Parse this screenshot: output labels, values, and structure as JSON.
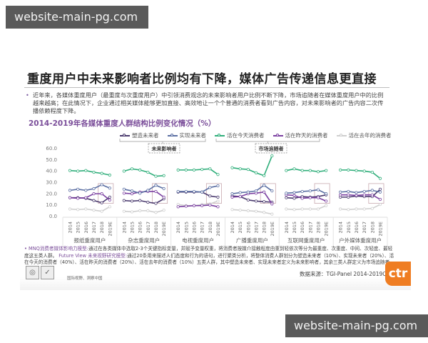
{
  "watermarks": {
    "top": "website-main-pg.com",
    "bottom": "website-main-pg.com"
  },
  "slide": {
    "title": "重度用户中未来影响者比例均有下降，媒体广告传递信息更直接",
    "bullet": "近年来，各媒体重度用户（最重度与次重度用户）中引领消费观念的未来影响者用户比例不断下降，市场追随者在媒体重度用户中的比例越来越高；在此情况下，企业通过相关媒体能够更加直接、高效地让一个个普通的消费者看到广告内容，对未来影响者的广告内容二次传播依赖程度下降。",
    "note_highlight_1": "MNQ消费者媒体影响力模型:",
    "note_text_1": "通过在各类媒体中选取2-3个关键指标变量，并赋予变量权重，将消费者按媒介接触程度由重到轻依次等分为最重度、次重度、中间、次轻度、最轻度这五类人群。",
    "note_highlight_2": "Future View 未来视野研究模型:",
    "note_text_2": "通过20条用来描述人们态度和行为的语句，进行聚类分析，将整体消费人群划分为塑造未来者（10%）、实现未来者（20%）、活在今天的消费者（40%）、活在昨天的消费者（20%）、活在去年的消费者（10%）五类人群，其中塑造未来者、实现未来者定义为未来影响者，其余三类人群定义为市场追随者。",
    "source": "数据来源：TGI-Panel 2014-2019Q2",
    "logo": "ctr",
    "badge_caption": "国际视野、洞察中国"
  },
  "chart_data": {
    "type": "line",
    "title": "2014-2019年各媒体重度人群结构比例变化情况（%）",
    "xlabel": "",
    "ylabel": "",
    "ylim": [
      0,
      60
    ],
    "yticks": [
      "60.0",
      "50.0",
      "40.0",
      "30.0",
      "20.0",
      "10.0",
      "0.0"
    ],
    "grid": false,
    "legend_position": "top",
    "years": [
      "2014",
      "2015",
      "2016",
      "2017",
      "2018",
      "2019E"
    ],
    "group_labels": {
      "future_influencers": "未来影响者",
      "market_followers": "市场追随者"
    },
    "legend": [
      {
        "key": "shape",
        "name": "塑造未来者",
        "color": "#4a3a6e"
      },
      {
        "key": "realize",
        "name": "实现未来者",
        "color": "#5b6fa3"
      },
      {
        "key": "today",
        "name": "活在今天消费者",
        "color": "#2fae7a"
      },
      {
        "key": "yesterday",
        "name": "活在昨天的消费者",
        "color": "#7a3fa0"
      },
      {
        "key": "lastyear",
        "name": "活在去年的消费者",
        "color": "#cfcfcf"
      }
    ],
    "panels": [
      {
        "name": "报纸重度用户",
        "series": {
          "today": [
            40,
            39.5,
            40,
            38.5,
            37.5,
            36
          ],
          "realize": [
            22.5,
            23.5,
            22.5,
            24,
            27.5,
            24.5
          ],
          "yesterday": [
            16,
            15.5,
            16,
            19.5,
            19.5,
            14
          ],
          "shape": [
            16,
            16,
            15.5,
            13.5,
            11.5,
            16.5
          ],
          "lastyear": [
            6,
            5.5,
            6,
            5,
            4,
            8
          ]
        }
      },
      {
        "name": "杂志重度用户",
        "series": {
          "today": [
            39.5,
            41.5,
            40.5,
            38.5,
            35,
            35.5
          ],
          "realize": [
            23.5,
            22,
            20,
            22.5,
            27,
            24
          ],
          "yesterday": [
            20,
            19.5,
            21,
            21.5,
            21.5,
            16.5
          ],
          "shape": [
            13.5,
            13,
            13.5,
            12,
            11,
            15
          ],
          "lastyear": [
            4,
            3.5,
            4.5,
            4.5,
            3,
            5
          ]
        }
      },
      {
        "name": "电视重度用户",
        "series": {
          "today": [
            40.5,
            40.5,
            40.5,
            41,
            41.5,
            36.5
          ],
          "realize": [
            21.5,
            21.5,
            21.5,
            21,
            25,
            26.5
          ],
          "shape": [
            21,
            21,
            21,
            21,
            17.5,
            16.5
          ],
          "yesterday": [
            8,
            8.5,
            9,
            9,
            9.5,
            8
          ],
          "lastyear": [
            10,
            9,
            9,
            10,
            10.5,
            13
          ]
        }
      },
      {
        "name": "广播重度用户",
        "series": {
          "today": [
            42.5,
            41.5,
            41,
            38,
            35.5,
            53
          ],
          "realize": [
            19.5,
            20.5,
            21,
            22,
            27,
            22
          ],
          "yesterday": [
            16.5,
            17,
            19.5,
            20,
            21,
            10.5
          ],
          "shape": [
            17.5,
            17,
            14,
            13,
            12.5,
            12
          ],
          "lastyear": [
            5.5,
            5,
            4.5,
            4,
            3,
            1.5
          ]
        }
      },
      {
        "name": "互联网重度用户",
        "series": {
          "today": [
            40,
            41.5,
            40,
            40,
            39,
            40
          ],
          "realize": [
            20,
            20.5,
            21.5,
            22,
            23,
            19.5
          ],
          "yesterday": [
            18.5,
            18,
            15.5,
            16,
            16,
            13
          ],
          "shape": [
            16,
            15.5,
            17,
            16.5,
            17,
            18.5
          ],
          "lastyear": [
            6,
            5.5,
            6,
            6,
            6,
            9
          ]
        }
      },
      {
        "name": "户外媒体重度用户",
        "series": {
          "today": [
            40.5,
            40.5,
            40,
            39.5,
            38.5,
            33
          ],
          "realize": [
            21,
            21.5,
            20.5,
            21.5,
            22.5,
            21
          ],
          "yesterday": [
            18.5,
            18.5,
            18,
            18.5,
            18.5,
            14.5
          ],
          "shape": [
            16.5,
            16.5,
            17.5,
            17,
            17,
            23.5
          ],
          "lastyear": [
            6,
            5.5,
            6,
            6,
            6.5,
            10
          ]
        }
      }
    ]
  }
}
